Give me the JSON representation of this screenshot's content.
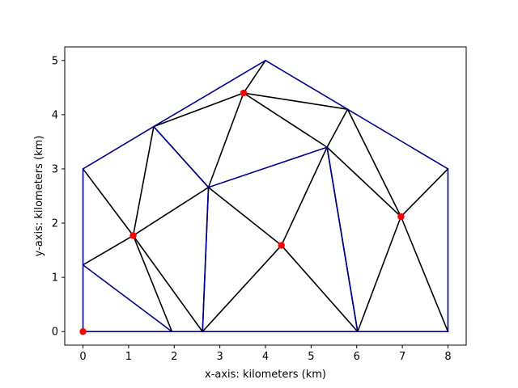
{
  "chart_data": {
    "type": "line",
    "title": "",
    "xlabel": "x-axis: kilometers (km)",
    "ylabel": "y-axis: kilometers (km)",
    "xlim": [
      -0.4,
      8.4
    ],
    "ylim": [
      -0.25,
      5.25
    ],
    "xticks": [
      0,
      1,
      2,
      3,
      4,
      5,
      6,
      7,
      8
    ],
    "yticks": [
      0,
      1,
      2,
      3,
      4,
      5
    ],
    "grid": false,
    "legend": "none",
    "colors": {
      "edge": "#000000",
      "boundary_edge": "#00008b",
      "marker": "#ff0000"
    },
    "nodes": [
      [
        0,
        0
      ],
      [
        1.95,
        0
      ],
      [
        2.62,
        0
      ],
      [
        6.02,
        0
      ],
      [
        8,
        0
      ],
      [
        0,
        1.23
      ],
      [
        0,
        3
      ],
      [
        1.55,
        3.78
      ],
      [
        4,
        5
      ],
      [
        5.8,
        4.1
      ],
      [
        8,
        3
      ],
      [
        1.1,
        1.77
      ],
      [
        2.75,
        2.66
      ],
      [
        3.52,
        4.4
      ],
      [
        5.35,
        3.4
      ],
      [
        4.35,
        1.59
      ],
      [
        6.97,
        2.12
      ]
    ],
    "black_edges": [
      [
        6,
        11
      ],
      [
        7,
        11
      ],
      [
        5,
        11
      ],
      [
        11,
        1
      ],
      [
        11,
        2
      ],
      [
        11,
        12
      ],
      [
        7,
        13
      ],
      [
        13,
        8
      ],
      [
        13,
        12
      ],
      [
        13,
        9
      ],
      [
        13,
        14
      ],
      [
        12,
        15
      ],
      [
        2,
        15
      ],
      [
        15,
        3
      ],
      [
        15,
        14
      ],
      [
        14,
        16
      ],
      [
        9,
        16
      ],
      [
        16,
        3
      ],
      [
        16,
        4
      ],
      [
        16,
        10
      ],
      [
        14,
        9
      ],
      [
        12,
        2
      ],
      [
        12,
        7
      ],
      [
        14,
        3
      ]
    ],
    "blue_edges": [
      [
        0,
        1
      ],
      [
        1,
        2
      ],
      [
        2,
        3
      ],
      [
        3,
        4
      ],
      [
        4,
        10
      ],
      [
        10,
        9
      ],
      [
        9,
        8
      ],
      [
        8,
        7
      ],
      [
        7,
        6
      ],
      [
        6,
        5
      ],
      [
        5,
        0
      ],
      [
        5,
        1
      ],
      [
        7,
        12
      ],
      [
        12,
        14
      ],
      [
        14,
        3
      ],
      [
        12,
        2
      ]
    ],
    "marked_points": [
      [
        0,
        0
      ],
      [
        1.1,
        1.77
      ],
      [
        3.52,
        4.4
      ],
      [
        4.35,
        1.59
      ],
      [
        6.97,
        2.12
      ]
    ]
  }
}
